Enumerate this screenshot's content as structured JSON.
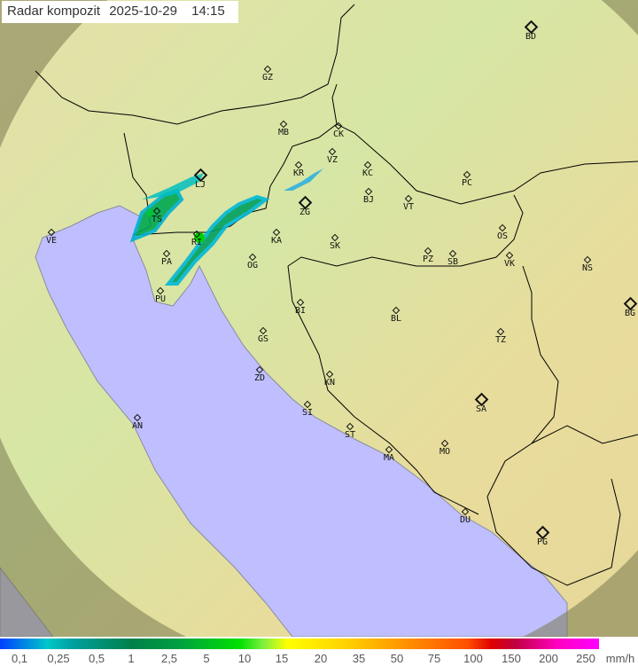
{
  "header": {
    "product": "Radar kompozit",
    "date": "2025-10-29",
    "time": "14:15"
  },
  "colors": {
    "sea": "#bfbfff",
    "land": "#d9e6a6",
    "out_of_range": "#8a8a60",
    "border": "#000000",
    "coast": "#808080"
  },
  "cities": [
    "BD",
    "GZ",
    "MB",
    "CK",
    "VZ",
    "KR",
    "KC",
    "LJ",
    "PC",
    "TS",
    "ZG",
    "BJ",
    "VT",
    "VE",
    "KA",
    "SK",
    "OS",
    "RI",
    "PA",
    "OG",
    "PZ",
    "SB",
    "VK",
    "NS",
    "PU",
    "BG",
    "BI",
    "BL",
    "GS",
    "TZ",
    "ZD",
    "KN",
    "SA",
    "SI",
    "AN",
    "ST",
    "MO",
    "MA",
    "DU",
    "PG"
  ],
  "legend": {
    "labels": [
      "0,1",
      "0,25",
      "0,5",
      "1",
      "2,5",
      "5",
      "10",
      "15",
      "20",
      "35",
      "50",
      "75",
      "100",
      "150",
      "200",
      "250"
    ],
    "unit": "mm/h"
  }
}
